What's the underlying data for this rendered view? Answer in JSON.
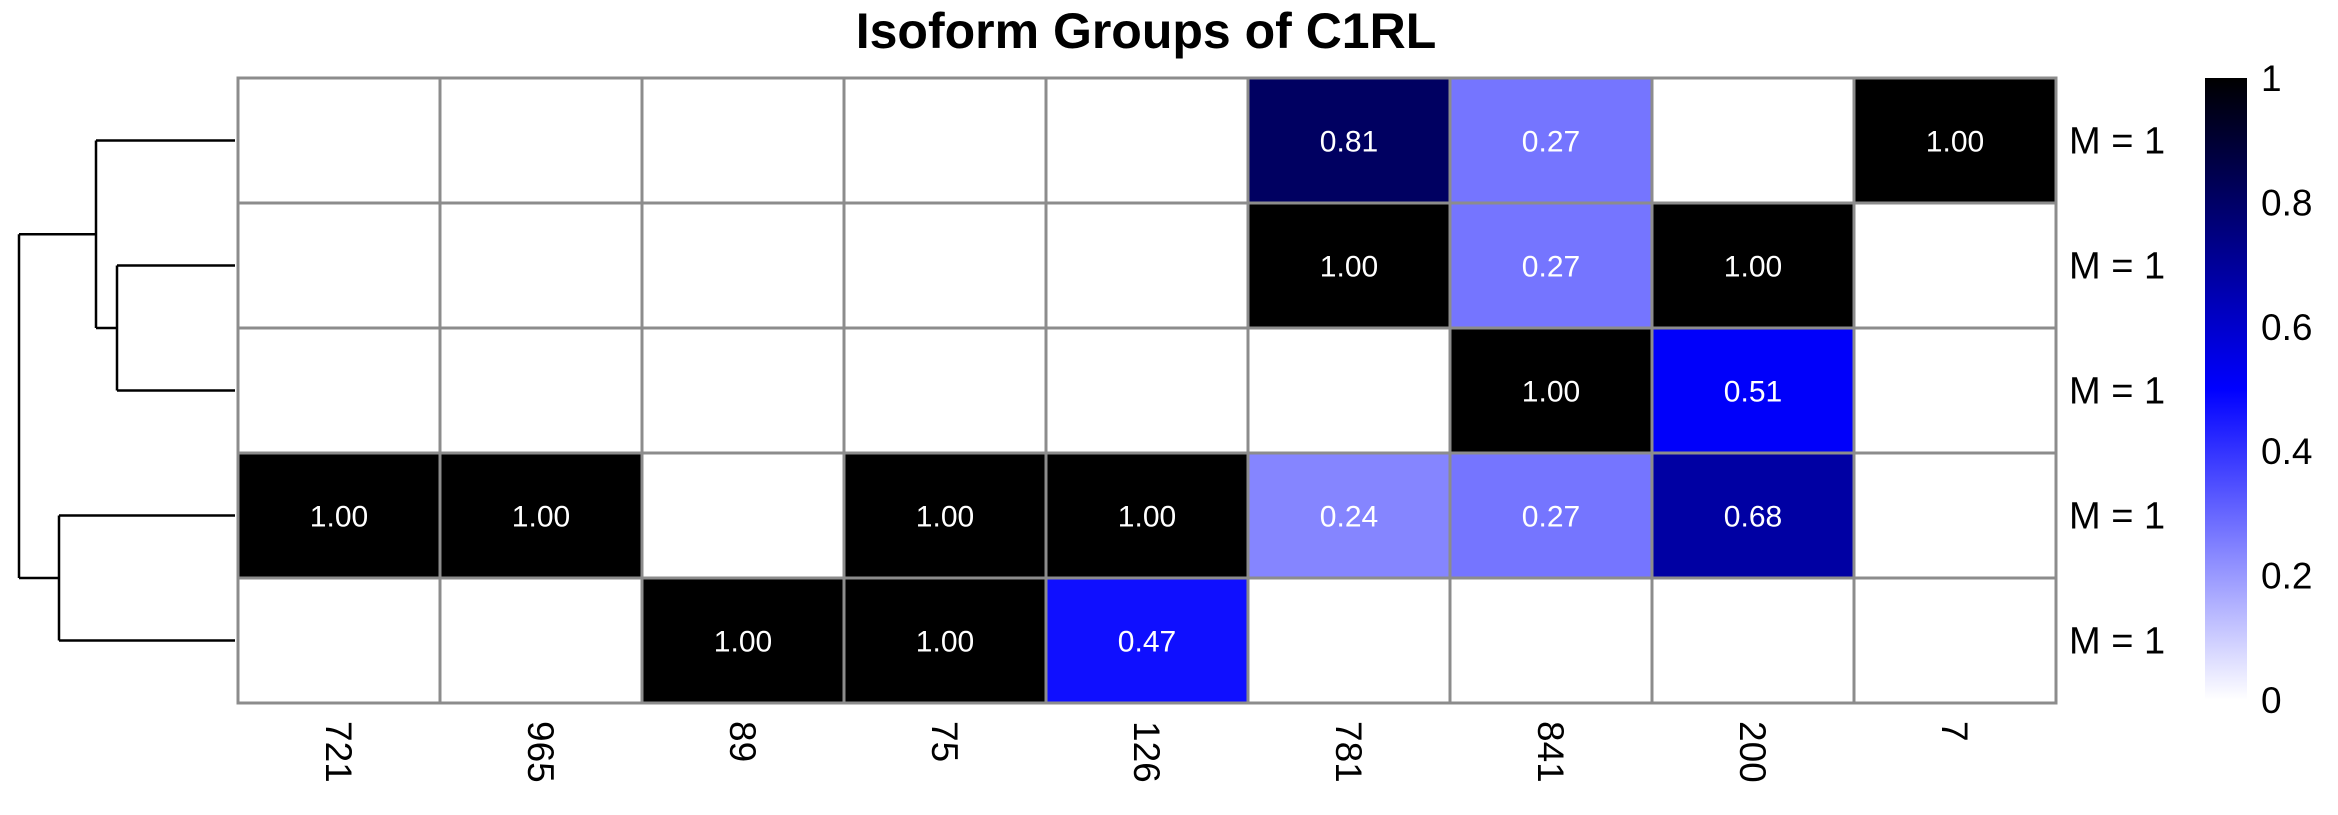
{
  "chart_data": {
    "type": "heatmap",
    "title": "Isoform Groups of C1RL",
    "columns": [
      "721",
      "965",
      "89",
      "75",
      "126",
      "781",
      "841",
      "200",
      "7"
    ],
    "rows": [
      "M = 1",
      "M = 1",
      "M = 1",
      "M = 1",
      "M = 1"
    ],
    "values": [
      [
        null,
        null,
        null,
        null,
        null,
        0.81,
        0.27,
        null,
        1.0
      ],
      [
        null,
        null,
        null,
        null,
        null,
        1.0,
        0.27,
        1.0,
        null
      ],
      [
        null,
        null,
        null,
        null,
        null,
        null,
        1.0,
        0.51,
        null
      ],
      [
        1.0,
        1.0,
        null,
        1.0,
        1.0,
        0.24,
        0.27,
        0.68,
        null
      ],
      [
        null,
        null,
        1.0,
        1.0,
        0.47,
        null,
        null,
        null,
        null
      ]
    ],
    "value_format_decimals": 2,
    "color_scale": {
      "min": 0,
      "max": 1,
      "stops": [
        {
          "value": 0,
          "color": "#ffffff"
        },
        {
          "value": 0.5,
          "color": "#0000ff"
        },
        {
          "value": 1,
          "color": "#000000"
        }
      ],
      "legend_ticks": [
        "0",
        "0.2",
        "0.4",
        "0.6",
        "0.8",
        "1"
      ],
      "legend_position": "right"
    },
    "dendrogram": {
      "side": "left",
      "clusters": [
        [
          0,
          [
            1,
            2
          ]
        ],
        [
          3,
          4
        ]
      ]
    },
    "grid_color": "#8c8c8c"
  }
}
